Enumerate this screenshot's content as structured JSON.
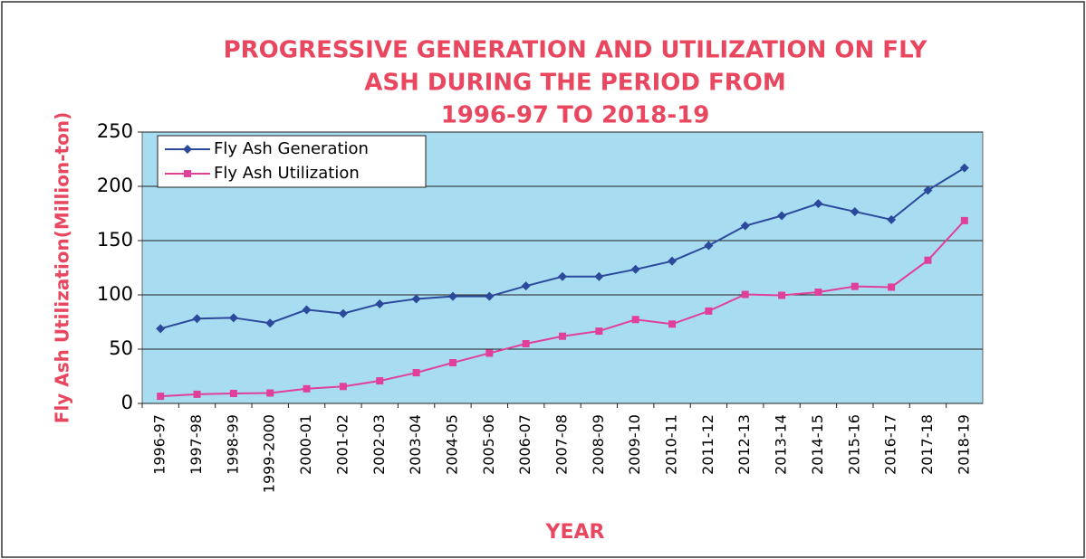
{
  "chart_data": {
    "type": "line",
    "title": [
      "PROGRESSIVE GENERATION AND UTILIZATION ON FLY",
      "ASH DURING THE PERIOD FROM",
      "1996-97 TO 2018-19"
    ],
    "x_label": "YEAR",
    "y_label": "Fly Ash Utilization(Million-ton)",
    "categories": [
      "1996-97",
      "1997-98",
      "1998-99",
      "1999-2000",
      "2000-01",
      "2001-02",
      "2002-03",
      "2003-04",
      "2004-05",
      "2005-06",
      "2006-07",
      "2007-08",
      "2008-09",
      "2009-10",
      "2010-11",
      "2011-12",
      "2012-13",
      "2013-14",
      "2014-15",
      "2015-16",
      "2016-17",
      "2017-18",
      "2018-19"
    ],
    "series": [
      {
        "name": "Fly Ash Generation",
        "color": "#2b4a9c",
        "marker": "diamond",
        "values": [
          68.9,
          78.1,
          78.9,
          74.0,
          86.3,
          82.8,
          91.7,
          96.3,
          98.6,
          98.6,
          108.2,
          116.9,
          116.9,
          123.5,
          131.1,
          145.4,
          163.6,
          172.9,
          184.1,
          176.7,
          169.3,
          196.4,
          217.0
        ]
      },
      {
        "name": "Fly Ash Utilization",
        "color": "#e0409a",
        "marker": "square",
        "values": [
          6.6,
          8.4,
          9.2,
          9.6,
          13.5,
          15.6,
          20.8,
          28.3,
          37.5,
          46.3,
          55.0,
          61.9,
          66.6,
          77.3,
          73.1,
          85.1,
          100.4,
          99.6,
          102.5,
          107.8,
          107.1,
          131.9,
          168.4
        ]
      }
    ],
    "ylim": [
      0,
      250
    ],
    "yticks": [
      0,
      50,
      100,
      150,
      200,
      250
    ],
    "grid": true,
    "legend": "upper-left",
    "background": "#a8dcf0"
  }
}
